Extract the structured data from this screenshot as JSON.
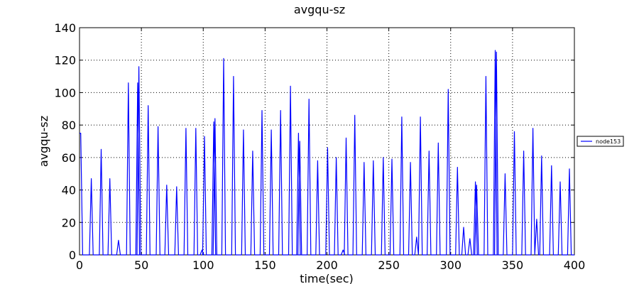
{
  "chart_data": {
    "type": "line",
    "title": "avgqu-sz",
    "xlabel": "time(sec)",
    "ylabel": "avgqu-sz",
    "xlim": [
      0,
      400
    ],
    "ylim": [
      0,
      140
    ],
    "xticks": [
      0,
      50,
      100,
      150,
      200,
      250,
      300,
      350,
      400
    ],
    "yticks": [
      0,
      20,
      40,
      60,
      80,
      100,
      120,
      140
    ],
    "grid": true,
    "legend_position": "right",
    "series": [
      {
        "name": "node153",
        "color": "#0000ff",
        "peaks": [
          [
            1,
            75
          ],
          [
            9.5,
            47
          ],
          [
            17.5,
            65
          ],
          [
            24.5,
            47
          ],
          [
            31.5,
            9
          ],
          [
            39.5,
            106
          ],
          [
            47,
            106
          ],
          [
            48,
            116
          ],
          [
            55.5,
            92
          ],
          [
            63.5,
            79
          ],
          [
            70.5,
            43
          ],
          [
            78.5,
            42
          ],
          [
            86,
            78
          ],
          [
            94,
            78
          ],
          [
            99,
            3
          ],
          [
            101,
            73
          ],
          [
            108.5,
            82
          ],
          [
            109.5,
            84
          ],
          [
            116.5,
            121
          ],
          [
            124.5,
            110
          ],
          [
            132.5,
            77
          ],
          [
            140,
            64
          ],
          [
            147.5,
            89
          ],
          [
            155,
            77
          ],
          [
            162.5,
            89
          ],
          [
            170.5,
            104
          ],
          [
            177,
            75
          ],
          [
            178,
            70
          ],
          [
            185.5,
            96
          ],
          [
            192.5,
            58
          ],
          [
            200.5,
            66
          ],
          [
            207.5,
            60
          ],
          [
            213,
            3
          ],
          [
            215.5,
            72
          ],
          [
            222.5,
            86
          ],
          [
            230,
            57
          ],
          [
            237.5,
            58
          ],
          [
            245.5,
            60
          ],
          [
            252.5,
            59
          ],
          [
            260.5,
            85
          ],
          [
            267.5,
            57
          ],
          [
            272.5,
            11
          ],
          [
            275.5,
            85
          ],
          [
            282.5,
            64
          ],
          [
            290,
            69
          ],
          [
            298,
            102
          ],
          [
            305.5,
            54
          ],
          [
            310.5,
            17
          ],
          [
            315.5,
            10
          ],
          [
            320,
            45
          ],
          [
            321,
            43
          ],
          [
            328.5,
            110
          ],
          [
            336,
            126
          ],
          [
            337,
            125
          ],
          [
            344,
            50
          ],
          [
            351.5,
            76
          ],
          [
            359,
            64
          ],
          [
            366.5,
            78
          ],
          [
            369.5,
            22
          ],
          [
            373.5,
            61
          ],
          [
            381.5,
            55
          ],
          [
            388.5,
            45
          ],
          [
            396,
            53
          ]
        ]
      }
    ]
  }
}
